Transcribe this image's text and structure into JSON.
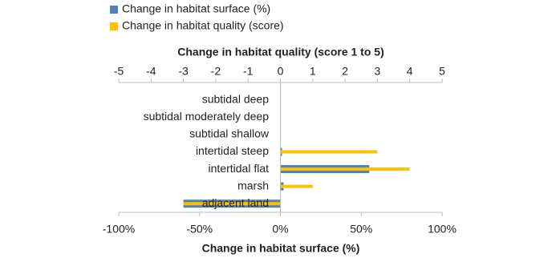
{
  "chart_data": {
    "type": "bar",
    "orientation": "horizontal",
    "categories": [
      "subtidal deep",
      "subtidal moderately deep",
      "subtidal shallow",
      "intertidal steep",
      "intertidal flat",
      "marsh",
      "adjacent land"
    ],
    "series": [
      {
        "name": "Change in habitat surface (%)",
        "color": "#4f81bd",
        "axis": "x",
        "values": [
          0,
          0,
          0,
          1,
          55,
          2,
          -60
        ]
      },
      {
        "name": "Change in habitat quality (score)",
        "color": "#ffc000",
        "axis": "x2",
        "values": [
          0,
          0,
          0,
          3,
          4,
          1,
          -3
        ]
      }
    ],
    "xlabel": "Change in habitat surface (%)",
    "xlim": [
      -100,
      100
    ],
    "xticks": [
      {
        "value": -100,
        "label": "-100%"
      },
      {
        "value": -50,
        "label": "-50%"
      },
      {
        "value": 0,
        "label": "0%"
      },
      {
        "value": 50,
        "label": "50%"
      },
      {
        "value": 100,
        "label": "100%"
      }
    ],
    "x2label": "Change in habitat quality (score 1 to 5)",
    "x2lim": [
      -5,
      5
    ],
    "x2ticks": [
      -5,
      -4,
      -3,
      -2,
      -1,
      0,
      1,
      2,
      3,
      4,
      5
    ],
    "legend": "top-left"
  }
}
